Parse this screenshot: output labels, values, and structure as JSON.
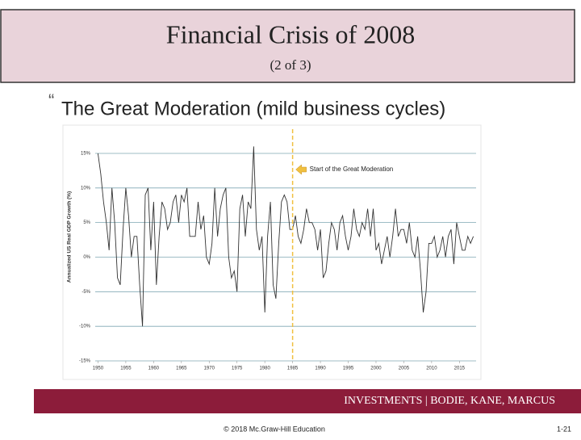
{
  "slide": {
    "title": "Financial Crisis of 2008",
    "subtitle": "(2 of 3)",
    "bullet": "The Great Moderation  (mild business cycles)",
    "footer_brand": "INVESTMENTS | BODIE, KANE, MARCUS",
    "copyright": "© 2018 Mc.Graw-Hill Education",
    "page": "1-21"
  },
  "chart_data": {
    "type": "line",
    "ylabel": "Annualized US Real GDP Growth (%)",
    "color": "#333333",
    "annotation": {
      "text": "Start of the Great Moderation",
      "x": 1985,
      "color": "#f0c040"
    },
    "x": [
      1950,
      1950.5,
      1951,
      1951.5,
      1952,
      1952.5,
      1953,
      1953.5,
      1954,
      1954.5,
      1955,
      1955.5,
      1956,
      1956.5,
      1957,
      1957.5,
      1958,
      1958.5,
      1959,
      1959.5,
      1960,
      1960.5,
      1961,
      1961.5,
      1962,
      1962.5,
      1963,
      1963.5,
      1964,
      1964.5,
      1965,
      1965.5,
      1966,
      1966.5,
      1967,
      1967.5,
      1968,
      1968.5,
      1969,
      1969.5,
      1970,
      1970.5,
      1971,
      1971.5,
      1972,
      1972.5,
      1973,
      1973.5,
      1974,
      1974.5,
      1975,
      1975.5,
      1976,
      1976.5,
      1977,
      1977.5,
      1978,
      1978.5,
      1979,
      1979.5,
      1980,
      1980.5,
      1981,
      1981.5,
      1982,
      1982.5,
      1983,
      1983.5,
      1984,
      1984.5,
      1985,
      1985.5,
      1986,
      1986.5,
      1987,
      1987.5,
      1988,
      1988.5,
      1989,
      1989.5,
      1990,
      1990.5,
      1991,
      1991.5,
      1992,
      1992.5,
      1993,
      1993.5,
      1994,
      1994.5,
      1995,
      1995.5,
      1996,
      1996.5,
      1997,
      1997.5,
      1998,
      1998.5,
      1999,
      1999.5,
      2000,
      2000.5,
      2001,
      2001.5,
      2002,
      2002.5,
      2003,
      2003.5,
      2004,
      2004.5,
      2005,
      2005.5,
      2006,
      2006.5,
      2007,
      2007.5,
      2008,
      2008.5,
      2009,
      2009.5,
      2010,
      2010.5,
      2011,
      2011.5,
      2012,
      2012.5,
      2013,
      2013.5,
      2014,
      2014.5,
      2015,
      2015.5,
      2016,
      2016.5,
      2017,
      2017.5
    ],
    "values": [
      15,
      12,
      8,
      5,
      1,
      10,
      5,
      -3,
      -4,
      4,
      10,
      6,
      0,
      3,
      3,
      -4,
      -10,
      9,
      10,
      1,
      8,
      -4,
      3,
      8,
      7,
      4,
      5,
      8,
      9,
      5,
      9,
      8,
      10,
      3,
      3,
      3,
      8,
      4,
      6,
      0,
      -1,
      2,
      10,
      3,
      7,
      9,
      10,
      0,
      -3,
      -2,
      -5,
      7,
      9,
      3,
      8,
      7,
      16,
      4,
      1,
      3,
      -8,
      3,
      8,
      -4,
      -6,
      2,
      8,
      9,
      8,
      4,
      4,
      6,
      3,
      2,
      4,
      7,
      5,
      5,
      4,
      1,
      4,
      -3,
      -2,
      2,
      5,
      4,
      1,
      5,
      6,
      3,
      1,
      3,
      7,
      4,
      3,
      5,
      4,
      7,
      3,
      7,
      1,
      2,
      -1,
      1,
      3,
      0,
      3,
      7,
      3,
      4,
      4,
      2,
      5,
      1,
      0,
      3,
      -2,
      -8,
      -5,
      2,
      2,
      3,
      0,
      1,
      3,
      0,
      3,
      4,
      -1,
      5,
      3,
      1,
      1,
      3,
      2,
      3
    ],
    "xlim": [
      1949.5,
      2018
    ],
    "ylim": [
      -15,
      18.5
    ],
    "xticks": [
      1950,
      1955,
      1960,
      1965,
      1970,
      1975,
      1980,
      1985,
      1990,
      1995,
      2000,
      2005,
      2010,
      2015
    ],
    "yticks": [
      {
        "value": -15,
        "label": "-15%"
      },
      {
        "value": -10,
        "label": "-10%"
      },
      {
        "value": -5,
        "label": "-5%"
      },
      {
        "value": 0,
        "label": "0%"
      },
      {
        "value": 5,
        "label": "5%"
      },
      {
        "value": 10,
        "label": "10%"
      },
      {
        "value": 15,
        "label": "15%"
      }
    ],
    "grid": true
  }
}
